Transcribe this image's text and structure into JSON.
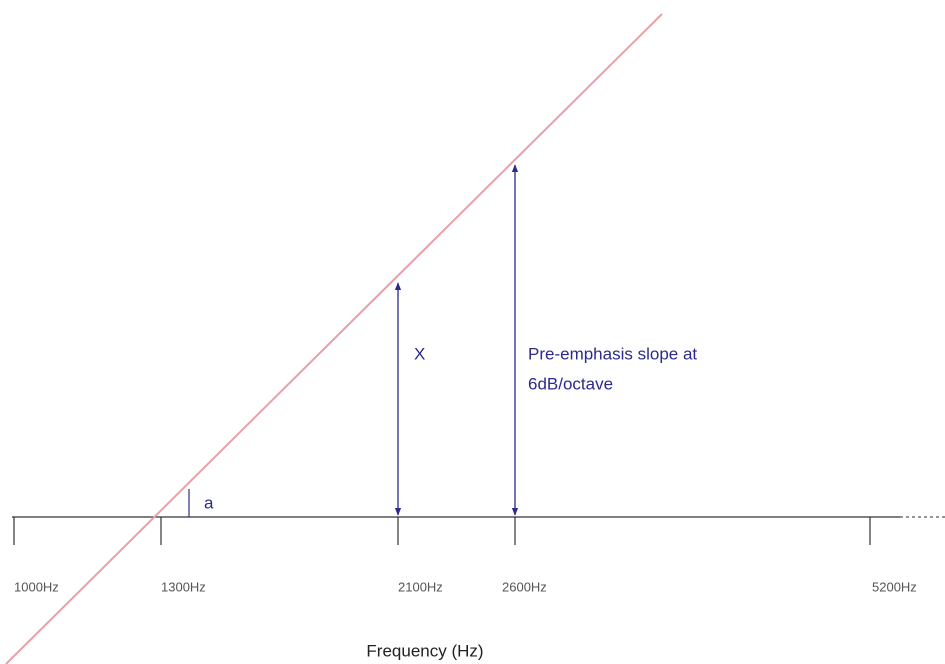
{
  "axis": {
    "tick_labels": [
      "1000Hz",
      "1300Hz",
      "2100Hz",
      "2600Hz",
      "5200Hz"
    ],
    "label": "Frequency (Hz)"
  },
  "annotations": {
    "x_arrow": "X",
    "slope_lines": [
      "Pre-emphasis slope at",
      "6dB/octave"
    ],
    "angle": "a"
  }
}
